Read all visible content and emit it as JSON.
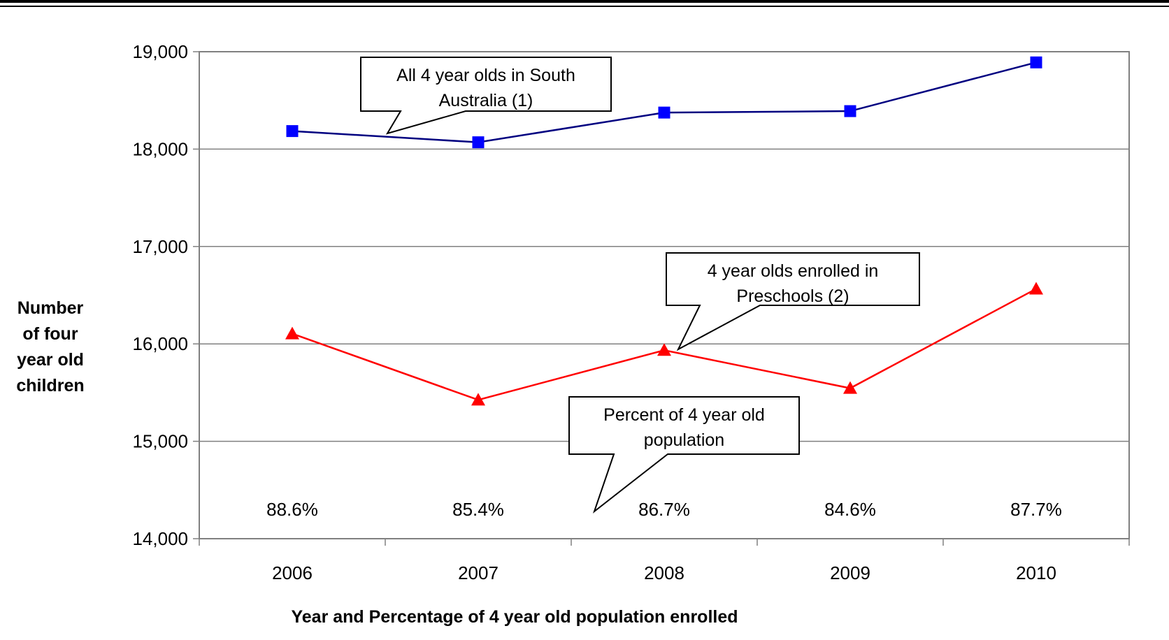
{
  "chart_data": {
    "type": "line",
    "categories": [
      "2006",
      "2007",
      "2008",
      "2009",
      "2010"
    ],
    "ylim": [
      14000,
      19000
    ],
    "yticks": [
      14000,
      15000,
      16000,
      17000,
      18000,
      19000
    ],
    "ytick_labels": [
      "14,000",
      "15,000",
      "16,000",
      "17,000",
      "18,000",
      "19,000"
    ],
    "ylabel_lines": [
      "Number",
      "of four",
      "year old",
      "children"
    ],
    "xlabel": "Year and Percentage of 4 year old population enrolled",
    "grid": "horizontal",
    "series": [
      {
        "name": "All 4 year olds in South Australia (1)",
        "name_lines": [
          "All 4 year olds in South",
          "Australia (1)"
        ],
        "values": [
          18185,
          18070,
          18375,
          18390,
          18890
        ],
        "color": "#0000ff",
        "line_color": "#000080",
        "marker": "square"
      },
      {
        "name": "4 year olds enrolled in Preschools (2)",
        "name_lines": [
          "4 year olds enrolled in",
          "Preschools (2)"
        ],
        "values": [
          16105,
          15425,
          15935,
          15545,
          16565
        ],
        "color": "#ff0000",
        "line_color": "#ff0000",
        "marker": "triangle"
      }
    ],
    "percentages": [
      "88.6%",
      "85.4%",
      "86.7%",
      "84.6%",
      "87.7%"
    ],
    "percent_callout_lines": [
      "Percent of 4 year old",
      "population"
    ]
  }
}
